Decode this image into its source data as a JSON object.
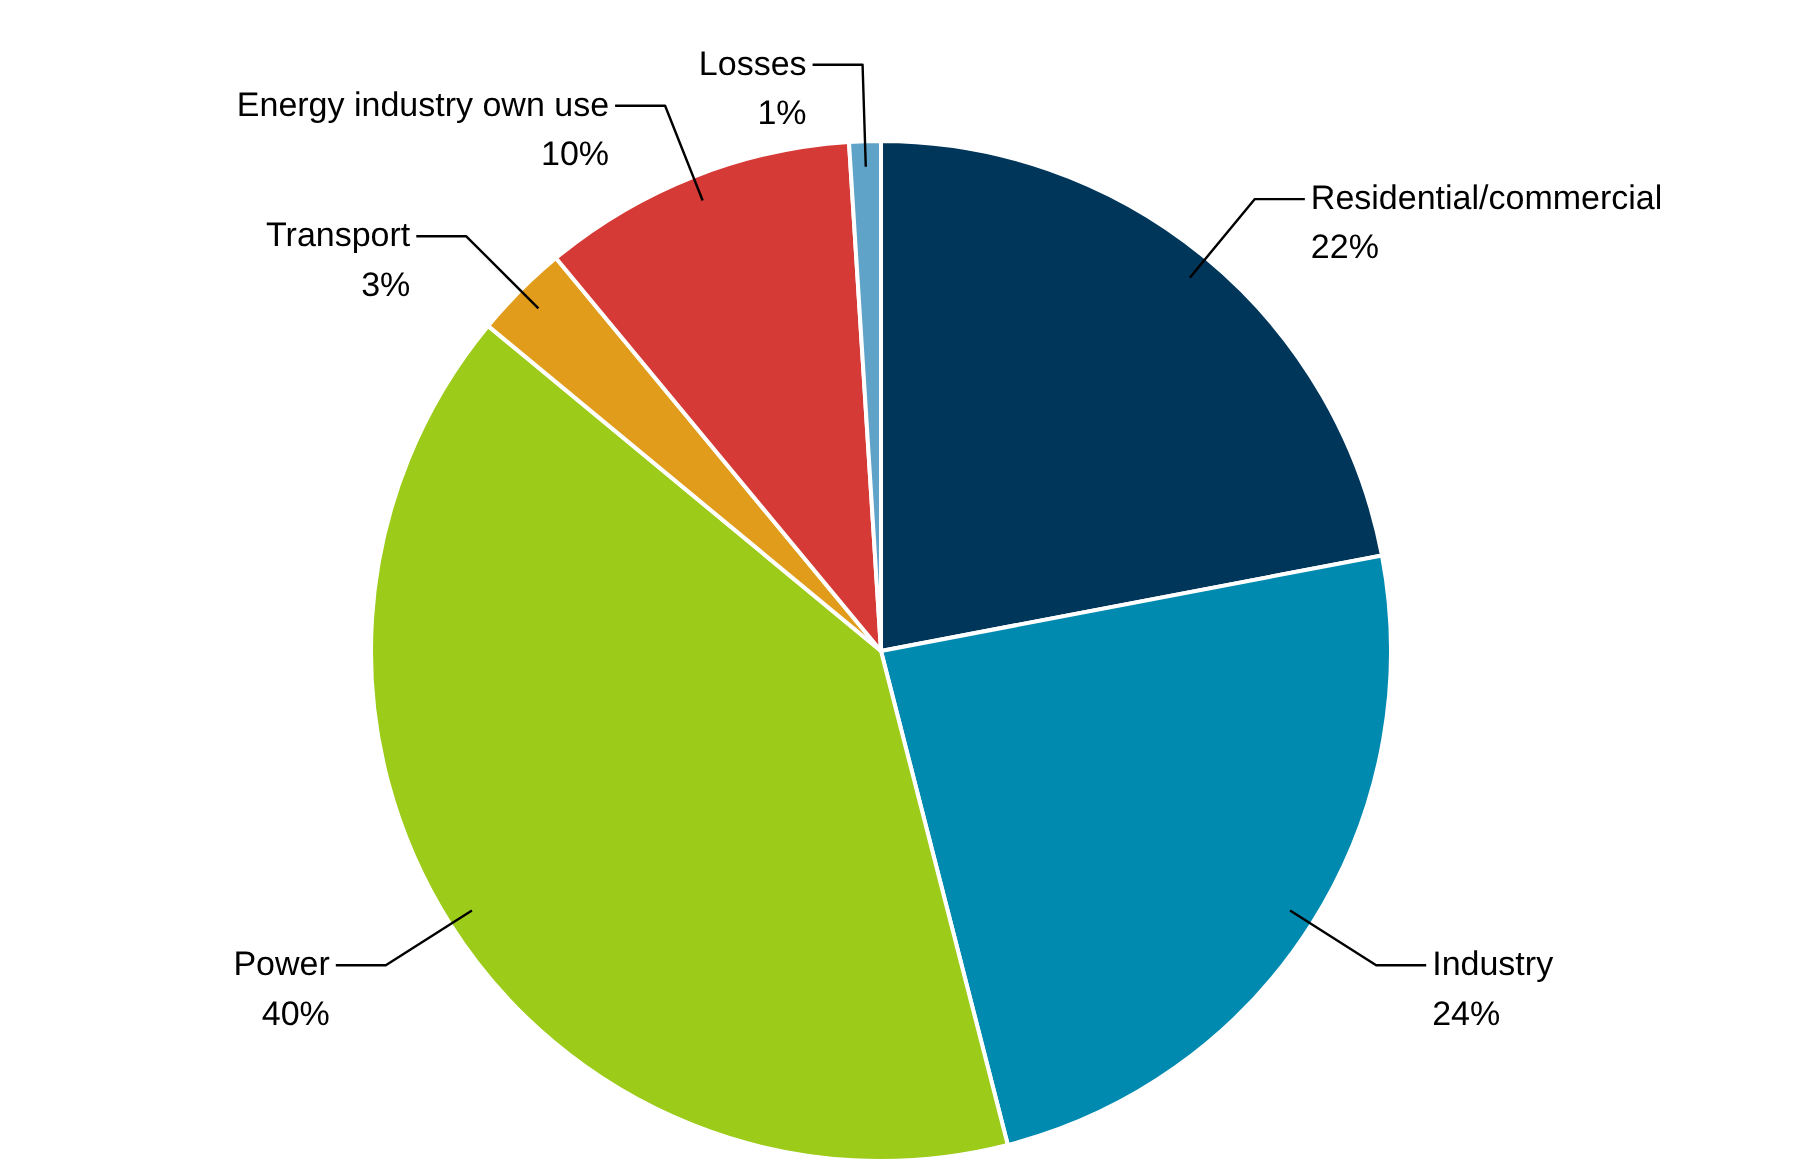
{
  "chart_data": {
    "type": "pie",
    "categories": [
      "Residential/commercial",
      "Industry",
      "Power",
      "Transport",
      "Energy industry own use",
      "Losses"
    ],
    "values": [
      22,
      24,
      40,
      3,
      10,
      1
    ],
    "value_labels": [
      "22%",
      "24%",
      "40%",
      "3%",
      "10%",
      "1%"
    ],
    "colors": [
      "#00365a",
      "#008ab0",
      "#9ccb19",
      "#e09c1a",
      "#d63a36",
      "#5fa3c8"
    ]
  }
}
